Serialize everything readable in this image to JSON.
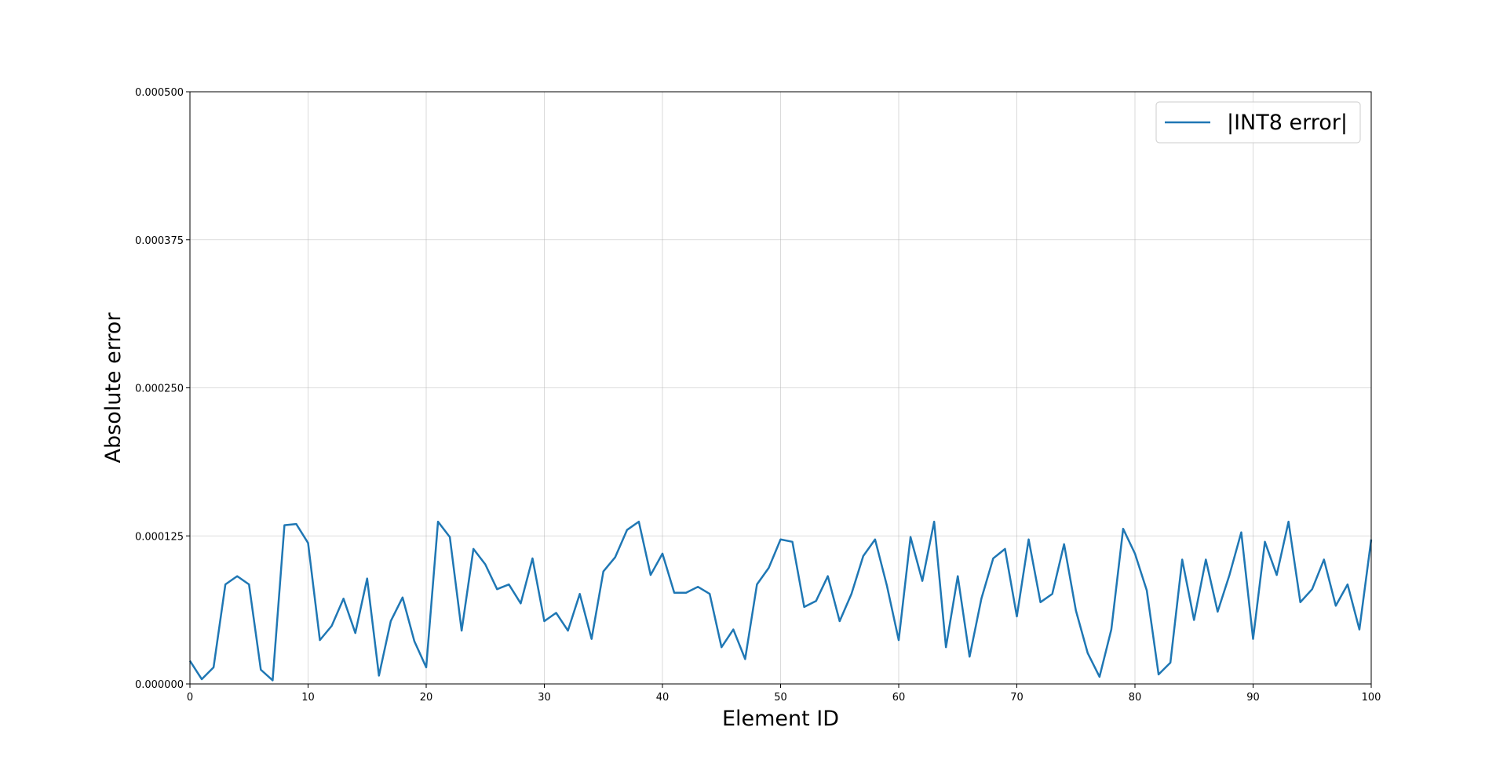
{
  "chart_data": {
    "type": "line",
    "title": "",
    "xlabel": "Element ID",
    "ylabel": "Absolute error",
    "xlim": [
      0,
      100
    ],
    "ylim": [
      0,
      0.0005
    ],
    "x_ticks": [
      0,
      10,
      20,
      30,
      40,
      50,
      60,
      70,
      80,
      90,
      100
    ],
    "x_tick_labels": [
      "0",
      "10",
      "20",
      "30",
      "40",
      "50",
      "60",
      "70",
      "80",
      "90",
      "100"
    ],
    "y_ticks": [
      0,
      0.000125,
      0.00025,
      0.000375,
      0.0005
    ],
    "y_tick_labels": [
      "0.000000",
      "0.000125",
      "0.000250",
      "0.000375",
      "0.000500"
    ],
    "grid": true,
    "legend_position": "top-right",
    "series": [
      {
        "name": "|INT8 error|",
        "color": "#1f77b4",
        "x": [
          0,
          1,
          2,
          3,
          4,
          5,
          6,
          7,
          8,
          9,
          10,
          11,
          12,
          13,
          14,
          15,
          16,
          17,
          18,
          19,
          20,
          21,
          22,
          23,
          24,
          25,
          26,
          27,
          28,
          29,
          30,
          31,
          32,
          33,
          34,
          35,
          36,
          37,
          38,
          39,
          40,
          41,
          42,
          43,
          44,
          45,
          46,
          47,
          48,
          49,
          50,
          51,
          52,
          53,
          54,
          55,
          56,
          57,
          58,
          59,
          60,
          61,
          62,
          63,
          64,
          65,
          66,
          67,
          68,
          69,
          70,
          71,
          72,
          73,
          74,
          75,
          76,
          77,
          78,
          79,
          80,
          81,
          82,
          83,
          84,
          85,
          86,
          87,
          88,
          89,
          90,
          91,
          92,
          93,
          94,
          95,
          96,
          97,
          98,
          99,
          100
        ],
        "values": [
          1.95e-05,
          4e-06,
          1.4e-05,
          8.4e-05,
          9.1e-05,
          8.4e-05,
          1.2e-05,
          3e-06,
          0.000134,
          0.000135,
          0.000119,
          3.7e-05,
          4.9e-05,
          7.2e-05,
          4.3e-05,
          8.9e-05,
          7e-06,
          5.3e-05,
          7.3e-05,
          3.6e-05,
          1.4e-05,
          0.000137,
          0.000124,
          4.5e-05,
          0.000114,
          0.000101,
          8e-05,
          8.4e-05,
          6.8e-05,
          0.000106,
          5.3e-05,
          6e-05,
          4.5e-05,
          7.6e-05,
          3.8e-05,
          9.5e-05,
          0.000107,
          0.00013,
          0.000137,
          9.2e-05,
          0.00011,
          7.7e-05,
          7.7e-05,
          8.2e-05,
          7.6e-05,
          3.1e-05,
          4.6e-05,
          2.1e-05,
          8.4e-05,
          9.8e-05,
          0.000122,
          0.00012,
          6.5e-05,
          7e-05,
          9.1e-05,
          5.3e-05,
          7.6e-05,
          0.000108,
          0.000122,
          8.3e-05,
          3.7e-05,
          0.000124,
          8.7e-05,
          0.000137,
          3.1e-05,
          9.1e-05,
          2.3e-05,
          7.2e-05,
          0.000106,
          0.000114,
          5.7e-05,
          0.000122,
          6.9e-05,
          7.6e-05,
          0.000118,
          6.2e-05,
          2.6e-05,
          6e-06,
          4.6e-05,
          0.000131,
          0.00011,
          7.9e-05,
          8e-06,
          1.8e-05,
          0.000105,
          5.4e-05,
          0.000105,
          6.1e-05,
          9.2e-05,
          0.000128,
          3.8e-05,
          0.00012,
          9.2e-05,
          0.000137,
          6.9e-05,
          8e-05,
          0.000105,
          6.6e-05,
          8.4e-05,
          4.6e-05,
          0.000122
        ]
      }
    ]
  }
}
